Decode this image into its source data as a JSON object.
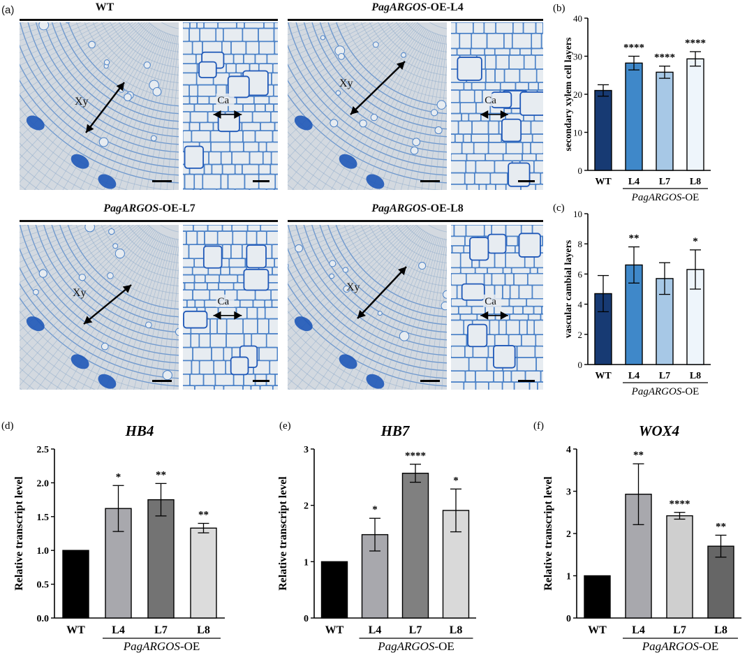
{
  "micrographs": {
    "panel_label": "(a)",
    "tiles": [
      {
        "title_italic": "",
        "title_rest": "WT",
        "label_xy": "Xy",
        "label_ca": "Ca"
      },
      {
        "title_italic": "PagARGOS",
        "title_rest": "-OE-L4",
        "label_xy": "Xy",
        "label_ca": "Ca"
      },
      {
        "title_italic": "PagARGOS",
        "title_rest": "-OE-L7",
        "label_xy": "Xy",
        "label_ca": "Ca"
      },
      {
        "title_italic": "PagARGOS",
        "title_rest": "-OE-L8",
        "label_xy": "Xy",
        "label_ca": "Ca"
      }
    ]
  },
  "colors": {
    "stain_bg": "#d3d9e0",
    "stain_wall": "#4d83c8",
    "stain_dark": "#1f58b8",
    "stain_lumen": "#e7ecf1"
  },
  "chart_data": [
    {
      "panel": "(b)",
      "type": "bar",
      "title": "",
      "ylabel": "secondary xylem cell layers",
      "categories": [
        "WT",
        "L4",
        "L7",
        "L8"
      ],
      "group_label_italic": "PagARGOS",
      "group_label_rest": "-OE",
      "values": [
        21,
        28.2,
        25.8,
        29.3
      ],
      "errors": [
        1.5,
        1.8,
        1.6,
        1.9
      ],
      "significance": [
        "",
        "****",
        "****",
        "****"
      ],
      "ylim": [
        0,
        40
      ],
      "yticks": [
        0,
        10,
        20,
        30,
        40
      ],
      "colors": [
        "#173a73",
        "#3f88c9",
        "#a7c8e6",
        "#eef5fb"
      ]
    },
    {
      "panel": "(c)",
      "type": "bar",
      "title": "",
      "ylabel": "vascular cambial layers",
      "categories": [
        "WT",
        "L4",
        "L7",
        "L8"
      ],
      "group_label_italic": "PagARGOS",
      "group_label_rest": "-OE",
      "values": [
        4.7,
        6.6,
        5.7,
        6.3
      ],
      "errors": [
        1.2,
        1.2,
        1.05,
        1.3
      ],
      "significance": [
        "",
        "**",
        "",
        "*"
      ],
      "ylim": [
        0,
        10
      ],
      "yticks": [
        0,
        2,
        4,
        6,
        8,
        10
      ],
      "colors": [
        "#173a73",
        "#3f88c9",
        "#a7c8e6",
        "#eef5fb"
      ]
    },
    {
      "panel": "(d)",
      "type": "bar",
      "title": "HB4",
      "ylabel": "Relative transcript level",
      "categories": [
        "WT",
        "L4",
        "L7",
        "L8"
      ],
      "group_label_italic": "PagARGOS",
      "group_label_rest": "-OE",
      "values": [
        1.0,
        1.62,
        1.75,
        1.33
      ],
      "errors": [
        0,
        0.34,
        0.24,
        0.07
      ],
      "significance": [
        "",
        "*",
        "**",
        "**"
      ],
      "ylim": [
        0,
        2.5
      ],
      "yticks": [
        "0.0",
        "0.5",
        "1.0",
        "1.5",
        "2.0",
        "2.5"
      ],
      "colors": [
        "#000000",
        "#a8a8ad",
        "#737373",
        "#dcdcdc"
      ]
    },
    {
      "panel": "(e)",
      "type": "bar",
      "title": "HB7",
      "ylabel": "Relative transcript level",
      "categories": [
        "WT",
        "L4",
        "L7",
        "L8"
      ],
      "group_label_italic": "PagARGOS",
      "group_label_rest": "-OE",
      "values": [
        1.0,
        1.48,
        2.57,
        1.91
      ],
      "errors": [
        0,
        0.29,
        0.16,
        0.38
      ],
      "significance": [
        "",
        "*",
        "****",
        "*"
      ],
      "ylim": [
        0,
        3
      ],
      "yticks": [
        "0",
        "1",
        "2",
        "3"
      ],
      "colors": [
        "#000000",
        "#a8a8ad",
        "#808080",
        "#d9d9d9"
      ]
    },
    {
      "panel": "(f)",
      "type": "bar",
      "title": "WOX4",
      "ylabel": "Relative transcript level",
      "categories": [
        "WT",
        "L4",
        "L7",
        "L8"
      ],
      "group_label_italic": "PagARGOS",
      "group_label_rest": "-OE",
      "values": [
        1.0,
        2.93,
        2.42,
        1.7
      ],
      "errors": [
        0,
        0.72,
        0.08,
        0.26
      ],
      "significance": [
        "",
        "**",
        "****",
        "**"
      ],
      "ylim": [
        0,
        4
      ],
      "yticks": [
        "0",
        "1",
        "2",
        "3",
        "4"
      ],
      "colors": [
        "#000000",
        "#a8a8ad",
        "#cfcfcf",
        "#666666"
      ]
    }
  ]
}
